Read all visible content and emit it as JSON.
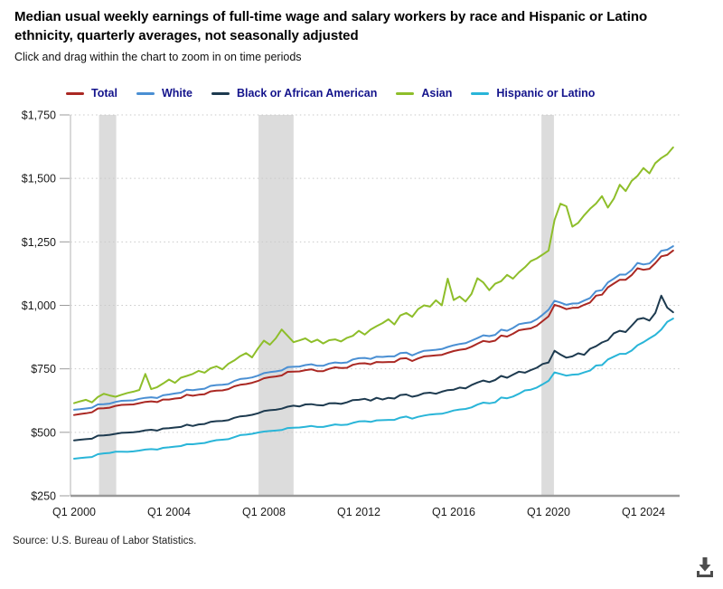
{
  "header": {
    "title": "Median usual weekly earnings of full-time wage and salary workers by race and Hispanic or Latino ethnicity, quarterly averages, not seasonally adjusted",
    "subtitle": "Click and drag within the chart to zoom in on time periods"
  },
  "legend": {
    "text_color": "#14148c",
    "items": [
      {
        "label": "Total",
        "color": "#aa2823"
      },
      {
        "label": "White",
        "color": "#4a8fd3"
      },
      {
        "label": "Black or African American",
        "color": "#1d3a4f"
      },
      {
        "label": "Asian",
        "color": "#8ebe2a"
      },
      {
        "label": "Hispanic or Latino",
        "color": "#29b5d8"
      }
    ]
  },
  "chart_data": {
    "type": "line",
    "title": "Median usual weekly earnings of full-time wage and salary workers by race and Hispanic or Latino ethnicity, quarterly averages, not seasonally adjusted",
    "xlabel": "",
    "ylabel": "",
    "x_unit": "quarter",
    "x_start": "2000 Q1",
    "x_end": "2025 Q2",
    "points_per_series": 102,
    "ylim": [
      250,
      1750
    ],
    "grid": "dotted-horizontal",
    "legend_position": "top",
    "x_ticks": [
      {
        "index": 0,
        "label": "Q1 2000"
      },
      {
        "index": 16,
        "label": "Q1 2004"
      },
      {
        "index": 32,
        "label": "Q1 2008"
      },
      {
        "index": 48,
        "label": "Q1 2012"
      },
      {
        "index": 64,
        "label": "Q1 2016"
      },
      {
        "index": 80,
        "label": "Q1 2020"
      },
      {
        "index": 96,
        "label": "Q1 2024"
      }
    ],
    "y_ticks": [
      {
        "value": 1750,
        "label": "$1,750"
      },
      {
        "value": 1500,
        "label": "$1,500"
      },
      {
        "value": 1250,
        "label": "$1,250"
      },
      {
        "value": 1000,
        "label": "$1,000"
      },
      {
        "value": 750,
        "label": "$750"
      },
      {
        "value": 500,
        "label": "$500"
      },
      {
        "value": 250,
        "label": "$250"
      }
    ],
    "recession_color": "#dcdcdc",
    "recessions": [
      {
        "label": "2001 recession (Q2 2001 - Q4 2001)",
        "start_index": 4.2,
        "end_index": 7.1
      },
      {
        "label": "2008-09 recession (Q4 2007 - Q2 2009)",
        "start_index": 31.1,
        "end_index": 37.0
      },
      {
        "label": "2020 recession (Q1 2020 - Q2 2020)",
        "start_index": 78.8,
        "end_index": 80.9
      }
    ],
    "series": [
      {
        "name": "Total",
        "color": "#aa2823",
        "values": [
          568,
          572,
          575,
          579,
          594,
          595,
          597,
          604,
          608,
          609,
          610,
          615,
          620,
          622,
          619,
          629,
          629,
          633,
          635,
          648,
          644,
          648,
          650,
          661,
          664,
          665,
          670,
          681,
          687,
          690,
          695,
          702,
          713,
          717,
          720,
          724,
          738,
          739,
          740,
          745,
          748,
          741,
          741,
          750,
          756,
          753,
          754,
          766,
          771,
          772,
          768,
          777,
          776,
          777,
          777,
          790,
          792,
          781,
          791,
          799,
          801,
          803,
          805,
          813,
          820,
          825,
          828,
          837,
          849,
          860,
          856,
          861,
          881,
          877,
          888,
          902,
          906,
          909,
          920,
          938,
          957,
          1002,
          995,
          985,
          990,
          991,
          1002,
          1011,
          1038,
          1042,
          1071,
          1086,
          1101,
          1101,
          1119,
          1146,
          1140,
          1144,
          1166,
          1193,
          1198,
          1216
        ]
      },
      {
        "name": "White",
        "color": "#4a8fd3",
        "values": [
          589,
          591,
          594,
          597,
          610,
          611,
          613,
          620,
          624,
          625,
          626,
          632,
          636,
          638,
          635,
          646,
          649,
          653,
          656,
          668,
          666,
          669,
          672,
          683,
          686,
          687,
          690,
          702,
          710,
          712,
          716,
          723,
          733,
          737,
          740,
          744,
          757,
          758,
          759,
          765,
          768,
          762,
          762,
          771,
          775,
          773,
          775,
          787,
          792,
          793,
          789,
          798,
          797,
          799,
          799,
          812,
          814,
          803,
          813,
          821,
          823,
          825,
          828,
          836,
          843,
          848,
          851,
          861,
          871,
          882,
          879,
          884,
          904,
          900,
          911,
          926,
          930,
          933,
          945,
          963,
          983,
          1018,
          1011,
          1002,
          1007,
          1008,
          1019,
          1029,
          1056,
          1060,
          1090,
          1105,
          1121,
          1121,
          1139,
          1167,
          1161,
          1165,
          1187,
          1215,
          1219,
          1233
        ]
      },
      {
        "name": "Black or African American",
        "color": "#1d3a4f",
        "values": [
          468,
          471,
          473,
          475,
          487,
          488,
          490,
          494,
          498,
          499,
          500,
          503,
          508,
          510,
          507,
          515,
          516,
          519,
          521,
          530,
          525,
          531,
          533,
          541,
          544,
          545,
          548,
          557,
          563,
          565,
          569,
          575,
          584,
          587,
          589,
          593,
          601,
          605,
          602,
          610,
          611,
          607,
          606,
          614,
          615,
          612,
          618,
          627,
          628,
          632,
          625,
          636,
          629,
          636,
          633,
          647,
          649,
          640,
          645,
          654,
          656,
          652,
          660,
          666,
          668,
          676,
          673,
          686,
          696,
          704,
          698,
          706,
          722,
          715,
          727,
          739,
          735,
          745,
          754,
          769,
          775,
          821,
          806,
          794,
          799,
          811,
          805,
          829,
          839,
          854,
          863,
          890,
          900,
          895,
          920,
          945,
          950,
          940,
          970,
          1038,
          991,
          973
        ]
      },
      {
        "name": "Asian",
        "color": "#8ebe2a",
        "values": [
          615,
          622,
          628,
          618,
          639,
          652,
          645,
          640,
          648,
          655,
          660,
          667,
          730,
          670,
          678,
          692,
          708,
          695,
          715,
          722,
          730,
          742,
          735,
          752,
          760,
          748,
          770,
          783,
          800,
          812,
          795,
          830,
          861,
          845,
          870,
          905,
          880,
          855,
          862,
          870,
          855,
          865,
          850,
          863,
          866,
          858,
          872,
          880,
          900,
          885,
          905,
          918,
          930,
          945,
          925,
          960,
          970,
          955,
          985,
          1000,
          995,
          1020,
          1000,
          1105,
          1021,
          1035,
          1015,
          1045,
          1107,
          1090,
          1060,
          1085,
          1095,
          1120,
          1105,
          1130,
          1150,
          1174,
          1185,
          1200,
          1216,
          1336,
          1400,
          1390,
          1310,
          1325,
          1355,
          1380,
          1401,
          1430,
          1385,
          1420,
          1475,
          1450,
          1490,
          1510,
          1541,
          1520,
          1560,
          1580,
          1595,
          1622
        ]
      },
      {
        "name": "Hispanic or Latino",
        "color": "#29b5d8",
        "values": [
          396,
          399,
          401,
          403,
          414,
          417,
          419,
          424,
          424,
          423,
          425,
          428,
          432,
          434,
          432,
          439,
          441,
          444,
          446,
          453,
          453,
          456,
          458,
          464,
          469,
          471,
          473,
          481,
          489,
          491,
          494,
          499,
          503,
          505,
          507,
          509,
          517,
          518,
          519,
          522,
          525,
          521,
          521,
          526,
          531,
          529,
          530,
          537,
          543,
          544,
          541,
          547,
          548,
          549,
          549,
          558,
          562,
          554,
          561,
          566,
          570,
          572,
          573,
          579,
          586,
          590,
          592,
          598,
          609,
          617,
          614,
          618,
          637,
          634,
          641,
          652,
          665,
          668,
          676,
          689,
          703,
          736,
          730,
          723,
          727,
          728,
          736,
          743,
          763,
          765,
          787,
          798,
          809,
          809,
          822,
          843,
          855,
          870,
          884,
          905,
          935,
          948
        ]
      }
    ]
  },
  "source": "Source: U.S. Bureau of Labor Statistics.",
  "download": {
    "name": "download-icon",
    "color": "#4d4d4d"
  }
}
